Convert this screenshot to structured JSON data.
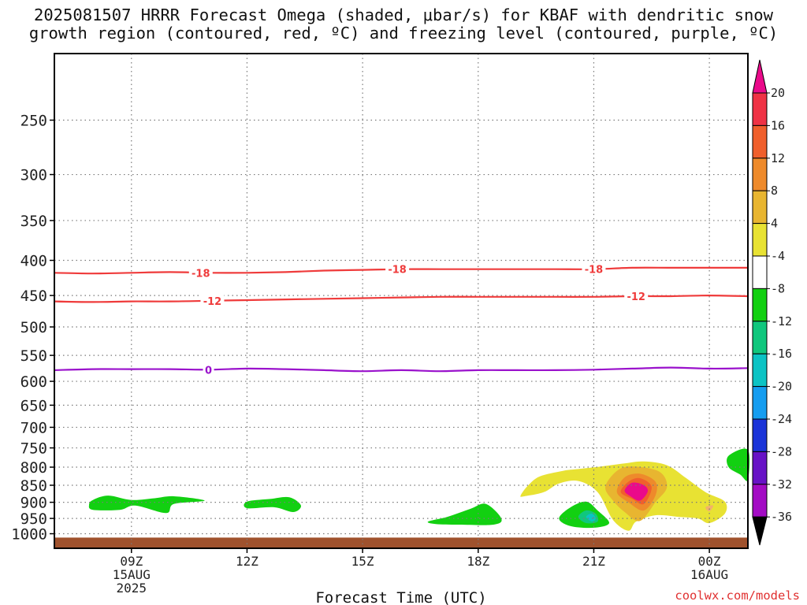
{
  "title_line1": "2025081507 HRRR Forecast Omega (shaded, μbar/s) for KBAF with dendritic snow",
  "title_line2": "growth region (contoured, red, ºC) and freezing level (contoured, purple, ºC)",
  "credit": "coolwx.com/models",
  "chart_data": {
    "type": "contour",
    "xlabel": "Forecast Time (UTC)",
    "ylabel": "",
    "y_scale": "log-pressure",
    "ylim_hpa": [
      1050,
      200
    ],
    "xlim_hours_utc": [
      7,
      25
    ],
    "y_ticks": [
      250,
      300,
      350,
      400,
      450,
      500,
      550,
      600,
      650,
      700,
      750,
      800,
      850,
      900,
      950,
      1000
    ],
    "x_ticks": [
      {
        "hour": 9,
        "label": "09Z",
        "date": "15AUG",
        "year": "2025"
      },
      {
        "hour": 12,
        "label": "12Z"
      },
      {
        "hour": 15,
        "label": "15Z"
      },
      {
        "hour": 18,
        "label": "18Z"
      },
      {
        "hour": 21,
        "label": "21Z"
      },
      {
        "hour": 24,
        "label": "00Z",
        "date": "16AUG"
      }
    ],
    "grid": true,
    "colorbar": {
      "colors": [
        "#b2b2b2",
        "#a30bc4",
        "#6812c6",
        "#1b34d8",
        "#159df0",
        "#0cc3c4",
        "#10c77d",
        "#12d011",
        "#ffffff",
        "#e8e233",
        "#e8b530",
        "#ee8a2b",
        "#f05f2c",
        "#ef3245",
        "#ea0a8a"
      ],
      "labels": [
        "-36",
        "-32",
        "-28",
        "-24",
        "-20",
        "-16",
        "-12",
        "-8",
        "-4",
        "4",
        "8",
        "12",
        "16",
        "20"
      ]
    },
    "contours": [
      {
        "value": -18,
        "color": "#ef3b3b",
        "label": "-18",
        "points": [
          [
            7,
            417
          ],
          [
            8,
            418
          ],
          [
            9,
            417
          ],
          [
            10,
            416
          ],
          [
            11,
            417
          ],
          [
            12,
            417
          ],
          [
            13,
            416
          ],
          [
            14,
            414
          ],
          [
            15,
            413
          ],
          [
            16,
            412
          ],
          [
            17,
            412
          ],
          [
            18,
            412
          ],
          [
            19,
            412
          ],
          [
            20,
            412
          ],
          [
            21,
            412
          ],
          [
            22,
            410
          ],
          [
            23,
            410
          ],
          [
            24,
            410
          ],
          [
            25,
            410
          ]
        ],
        "label_at": [
          [
            10.8,
            417
          ],
          [
            15.9,
            412
          ],
          [
            21.0,
            412
          ]
        ]
      },
      {
        "value": -12,
        "color": "#ef3b3b",
        "label": "-12",
        "points": [
          [
            7,
            459
          ],
          [
            8,
            460
          ],
          [
            9,
            459
          ],
          [
            10,
            459
          ],
          [
            11,
            458
          ],
          [
            12,
            457
          ],
          [
            13,
            456
          ],
          [
            14,
            455
          ],
          [
            15,
            454
          ],
          [
            16,
            453
          ],
          [
            17,
            452
          ],
          [
            18,
            452
          ],
          [
            19,
            452
          ],
          [
            20,
            452
          ],
          [
            21,
            452
          ],
          [
            22,
            451
          ],
          [
            23,
            451
          ],
          [
            24,
            450
          ],
          [
            25,
            451
          ]
        ],
        "label_at": [
          [
            11.1,
            458
          ],
          [
            22.1,
            451
          ]
        ]
      },
      {
        "value": 0,
        "color": "#9a12cc",
        "label": "0",
        "points": [
          [
            7,
            578
          ],
          [
            8,
            576
          ],
          [
            9,
            576
          ],
          [
            10,
            576
          ],
          [
            11,
            577
          ],
          [
            12,
            575
          ],
          [
            13,
            576
          ],
          [
            14,
            578
          ],
          [
            15,
            580
          ],
          [
            16,
            578
          ],
          [
            17,
            580
          ],
          [
            18,
            578
          ],
          [
            19,
            578
          ],
          [
            20,
            578
          ],
          [
            21,
            577
          ],
          [
            22,
            575
          ],
          [
            23,
            573
          ],
          [
            24,
            575
          ],
          [
            25,
            574
          ]
        ],
        "label_at": [
          [
            11.0,
            577
          ]
        ]
      }
    ],
    "omega_regions": [
      {
        "value_class": "-4 to -8",
        "color": "#12d011",
        "points": [
          [
            8.0,
            893
          ],
          [
            8.4,
            880
          ],
          [
            9.0,
            893
          ],
          [
            9.6,
            888
          ],
          [
            10.1,
            882
          ],
          [
            10.9,
            895
          ],
          [
            10.1,
            905
          ],
          [
            9.9,
            933
          ],
          [
            9.1,
            910
          ],
          [
            8.7,
            923
          ],
          [
            8.0,
            923
          ],
          [
            7.9,
            908
          ]
        ]
      },
      {
        "value_class": "-4 to -8",
        "color": "#12d011",
        "points": [
          [
            12.0,
            898
          ],
          [
            12.6,
            890
          ],
          [
            13.1,
            885
          ],
          [
            13.4,
            910
          ],
          [
            13.2,
            930
          ],
          [
            12.7,
            915
          ],
          [
            12.0,
            918
          ]
        ]
      },
      {
        "value_class": "-4 to -8",
        "color": "#12d011",
        "points": [
          [
            16.7,
            960
          ],
          [
            17.2,
            945
          ],
          [
            17.8,
            920
          ],
          [
            18.2,
            905
          ],
          [
            18.6,
            950
          ],
          [
            18.4,
            970
          ],
          [
            17.5,
            970
          ],
          [
            16.9,
            968
          ]
        ]
      },
      {
        "value_class": "-4 to -8",
        "color": "#12d011",
        "points": [
          [
            20.1,
            950
          ],
          [
            20.4,
            915
          ],
          [
            20.8,
            898
          ],
          [
            21.1,
            925
          ],
          [
            21.4,
            965
          ],
          [
            21.0,
            980
          ],
          [
            20.4,
            975
          ]
        ]
      },
      {
        "value_class": "-8 to -12",
        "color": "#10c77d",
        "points": [
          [
            20.6,
            945
          ],
          [
            20.8,
            925
          ],
          [
            21.05,
            935
          ],
          [
            21.1,
            960
          ],
          [
            20.8,
            965
          ]
        ]
      },
      {
        "value_class": "-12 to -16",
        "color": "#0cc3c4",
        "points": [
          [
            20.8,
            945
          ],
          [
            20.95,
            935
          ],
          [
            21.05,
            950
          ],
          [
            20.95,
            960
          ]
        ]
      },
      {
        "value_class": "-4 to -8",
        "color": "#12d011",
        "points": [
          [
            24.5,
            770
          ],
          [
            25,
            755
          ],
          [
            25,
            835
          ],
          [
            24.8,
            820
          ],
          [
            24.5,
            800
          ]
        ]
      },
      {
        "value_class": "4 to 8",
        "color": "#e8e233",
        "points": [
          [
            19.1,
            880
          ],
          [
            19.3,
            850
          ],
          [
            19.6,
            825
          ],
          [
            20.2,
            810
          ],
          [
            20.6,
            805
          ],
          [
            21.2,
            798
          ],
          [
            21.8,
            790
          ],
          [
            22.3,
            785
          ],
          [
            22.9,
            795
          ],
          [
            23.4,
            830
          ],
          [
            23.9,
            870
          ],
          [
            24.4,
            898
          ],
          [
            24.4,
            935
          ],
          [
            24.0,
            965
          ],
          [
            23.7,
            950
          ],
          [
            23.2,
            945
          ],
          [
            22.6,
            940
          ],
          [
            22.1,
            960
          ],
          [
            21.9,
            990
          ],
          [
            21.5,
            955
          ],
          [
            21.1,
            870
          ],
          [
            20.6,
            838
          ],
          [
            20.1,
            845
          ],
          [
            19.7,
            870
          ],
          [
            19.2,
            882
          ]
        ]
      },
      {
        "value_class": "8 to 12",
        "color": "#e8b530",
        "points": [
          [
            21.3,
            855
          ],
          [
            21.6,
            810
          ],
          [
            22.0,
            798
          ],
          [
            22.7,
            812
          ],
          [
            22.9,
            855
          ],
          [
            22.6,
            900
          ],
          [
            22.2,
            958
          ],
          [
            21.8,
            930
          ],
          [
            21.5,
            895
          ]
        ]
      },
      {
        "value_class": "12 to 16",
        "color": "#ee8a2b",
        "points": [
          [
            21.6,
            870
          ],
          [
            21.8,
            828
          ],
          [
            22.2,
            818
          ],
          [
            22.6,
            840
          ],
          [
            22.6,
            880
          ],
          [
            22.3,
            925
          ],
          [
            21.9,
            900
          ]
        ]
      },
      {
        "value_class": "16 to 20",
        "color": "#f05f2c",
        "points": [
          [
            21.7,
            870
          ],
          [
            21.9,
            840
          ],
          [
            22.2,
            830
          ],
          [
            22.5,
            855
          ],
          [
            22.3,
            905
          ],
          [
            22.0,
            890
          ]
        ]
      },
      {
        "value_class": ">20",
        "color": "#ea0a8a",
        "points": [
          [
            21.8,
            865
          ],
          [
            22.0,
            843
          ],
          [
            22.3,
            850
          ],
          [
            22.4,
            868
          ],
          [
            22.2,
            895
          ],
          [
            21.95,
            882
          ]
        ]
      },
      {
        "value_class": "4 to 8",
        "color": "#f2b26a",
        "points": [
          [
            23.9,
            915
          ],
          [
            24.1,
            910
          ],
          [
            24.0,
            928
          ]
        ]
      }
    ],
    "terrain": {
      "color": "#a0522d",
      "top_hpa": 1013
    }
  }
}
